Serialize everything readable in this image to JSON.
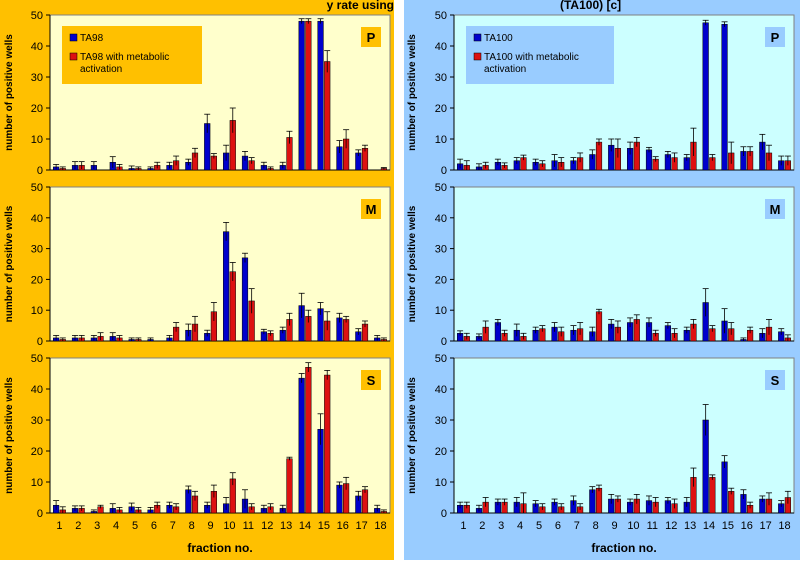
{
  "header_text": "y rate using",
  "header_text_right": "(TA100) [c]",
  "xlabel": "fraction no.",
  "ylabel": "number of positive wells",
  "colors": {
    "left_bg": "#ffc000",
    "right_bg": "#99ccff",
    "left_plot": "#ffffcc",
    "right_plot": "#ccffff",
    "blue": "#0000cc",
    "red": "#dd1111",
    "badge_left": "#ffc000",
    "badge_right": "#99ccff",
    "legend_right": "#99ccff"
  },
  "legend_left": [
    "TA98",
    "TA98 with metabolic activation"
  ],
  "legend_right": [
    "TA100",
    "TA100 with metabolic activation"
  ],
  "chart_data": [
    {
      "type": "bar",
      "panel": "P",
      "strain": "TA98",
      "categories": [
        "1",
        "2",
        "3",
        "4",
        "5",
        "6",
        "7",
        "8",
        "9",
        "10",
        "11",
        "12",
        "13",
        "14",
        "15",
        "16",
        "17",
        "18"
      ],
      "ylim": [
        0,
        50
      ],
      "yticks": [
        0,
        10,
        20,
        30,
        40,
        50
      ],
      "series": [
        {
          "name": "TA98",
          "values": [
            1,
            1.5,
            1.5,
            2.5,
            0.5,
            0.5,
            1.5,
            2.5,
            15,
            5.5,
            4.5,
            1.5,
            1.5,
            48,
            48,
            7.5,
            5.5,
            0
          ],
          "errors": [
            0.8,
            1.2,
            1.2,
            1.8,
            0.8,
            0.5,
            1,
            1,
            3,
            2.5,
            1.5,
            1,
            1,
            0.8,
            0.8,
            2,
            1,
            0
          ]
        },
        {
          "name": "TA98 with metabolic activation",
          "values": [
            0.5,
            1.5,
            0,
            1,
            0.5,
            1.5,
            3,
            5.5,
            4.5,
            16,
            3,
            0.5,
            10.5,
            48,
            35,
            10,
            7,
            0.5
          ],
          "errors": [
            0.5,
            1.2,
            0,
            0.8,
            0.5,
            1,
            1.5,
            1.5,
            0.8,
            4,
            1,
            0.5,
            2,
            0.8,
            3.5,
            3,
            1,
            0.3
          ]
        }
      ]
    },
    {
      "type": "bar",
      "panel": "M",
      "strain": "TA98",
      "categories": [
        "1",
        "2",
        "3",
        "4",
        "5",
        "6",
        "7",
        "8",
        "9",
        "10",
        "11",
        "12",
        "13",
        "14",
        "15",
        "16",
        "17",
        "18"
      ],
      "ylim": [
        0,
        50
      ],
      "yticks": [
        0,
        10,
        20,
        30,
        40,
        50
      ],
      "series": [
        {
          "name": "TA98",
          "values": [
            1,
            1,
            1,
            1.5,
            0.5,
            0.5,
            1,
            3.5,
            2.5,
            35.5,
            27,
            3,
            3.5,
            11.5,
            10.5,
            7.5,
            3,
            1
          ],
          "errors": [
            0.8,
            0.8,
            0.8,
            1.2,
            0.5,
            0.5,
            0.8,
            2,
            1,
            3,
            1.5,
            0.8,
            1,
            4,
            2,
            1.5,
            1,
            0.8
          ]
        },
        {
          "name": "TA98 with metabolic activation",
          "values": [
            0.5,
            1,
            1.5,
            1,
            0.5,
            0,
            4.5,
            5.5,
            9.5,
            22.5,
            13,
            2.5,
            7,
            8,
            6.5,
            7,
            5.5,
            0.5
          ],
          "errors": [
            0.5,
            0.8,
            1.2,
            0.8,
            0.5,
            0,
            1.5,
            2.5,
            3,
            3,
            4,
            0.8,
            2,
            2,
            3,
            1,
            1,
            0.5
          ]
        }
      ]
    },
    {
      "type": "bar",
      "panel": "S",
      "strain": "TA98",
      "categories": [
        "1",
        "2",
        "3",
        "4",
        "5",
        "6",
        "7",
        "8",
        "9",
        "10",
        "11",
        "12",
        "13",
        "14",
        "15",
        "16",
        "17",
        "18"
      ],
      "ylim": [
        0,
        50
      ],
      "yticks": [
        0,
        10,
        20,
        30,
        40,
        50
      ],
      "series": [
        {
          "name": "TA98",
          "values": [
            2.5,
            1.5,
            0.5,
            1.5,
            2,
            1,
            2.5,
            7.5,
            2.5,
            3,
            4.5,
            1.5,
            1.5,
            43.5,
            27,
            9,
            5.5,
            1.5
          ],
          "errors": [
            1.5,
            0.8,
            0.5,
            1.5,
            1.2,
            0.8,
            1,
            1.2,
            1,
            2,
            3,
            1,
            1,
            1.5,
            5,
            1,
            1.5,
            1
          ]
        },
        {
          "name": "TA98 with metabolic activation",
          "values": [
            1,
            1.5,
            2,
            1,
            1,
            2.5,
            2,
            5.5,
            7,
            11,
            2,
            2,
            17.5,
            47,
            44.5,
            9.5,
            7.5,
            0.5
          ],
          "errors": [
            1,
            0.8,
            0.5,
            0.8,
            0.8,
            1,
            1,
            1.5,
            2,
            2,
            1,
            1,
            0.5,
            1.5,
            1.5,
            2,
            1,
            0.5
          ]
        }
      ]
    },
    {
      "type": "bar",
      "panel": "P",
      "strain": "TA100",
      "categories": [
        "1",
        "2",
        "3",
        "4",
        "5",
        "6",
        "7",
        "8",
        "9",
        "10",
        "11",
        "12",
        "13",
        "14",
        "15",
        "16",
        "17",
        "18"
      ],
      "ylim": [
        0,
        50
      ],
      "yticks": [
        0,
        10,
        20,
        30,
        40,
        50
      ],
      "series": [
        {
          "name": "TA100",
          "values": [
            2,
            1,
            2.5,
            3,
            2.5,
            3,
            3,
            5,
            8,
            7,
            6.5,
            5,
            4,
            47.5,
            47,
            6,
            9,
            3
          ],
          "errors": [
            1.5,
            1,
            1,
            1,
            1,
            2,
            1,
            1.5,
            2,
            2,
            0.8,
            1,
            1,
            0.8,
            0.8,
            1.5,
            2.5,
            1.5
          ]
        },
        {
          "name": "TA100 with metabolic activation",
          "values": [
            1.5,
            1.5,
            1.5,
            4,
            2,
            2.5,
            4,
            9,
            7,
            9,
            3.5,
            4,
            9,
            4,
            5.5,
            6,
            5.5,
            3
          ],
          "errors": [
            1.5,
            1,
            0.8,
            0.8,
            1,
            1.5,
            1.5,
            1,
            3,
            1.5,
            0.8,
            1.5,
            4.5,
            1,
            3.5,
            1.5,
            2.5,
            1.5
          ]
        }
      ]
    },
    {
      "type": "bar",
      "panel": "M",
      "strain": "TA100",
      "categories": [
        "1",
        "2",
        "3",
        "4",
        "5",
        "6",
        "7",
        "8",
        "9",
        "10",
        "11",
        "12",
        "13",
        "14",
        "15",
        "16",
        "17",
        "18"
      ],
      "ylim": [
        0,
        50
      ],
      "yticks": [
        0,
        10,
        20,
        30,
        40,
        50
      ],
      "series": [
        {
          "name": "TA100",
          "values": [
            2.5,
            1.5,
            6,
            3.5,
            3.5,
            4.5,
            3.5,
            3,
            5.5,
            6,
            6,
            5,
            3.5,
            12.5,
            6.5,
            0.5,
            2.5,
            3
          ],
          "errors": [
            0.8,
            0.8,
            1,
            2,
            1,
            1.5,
            1.5,
            1.5,
            1.5,
            1.5,
            1.5,
            1,
            1,
            4.5,
            4,
            0.5,
            1.5,
            1
          ]
        },
        {
          "name": "TA100 with metabolic activation",
          "values": [
            1.5,
            4.5,
            2.5,
            1.5,
            4,
            3,
            4,
            9.5,
            4.5,
            7,
            2.5,
            2.5,
            5.5,
            4,
            4,
            3.5,
            4.5,
            1
          ],
          "errors": [
            1,
            2,
            1,
            1,
            1,
            1.5,
            2,
            0.8,
            2,
            1.5,
            1,
            1.5,
            1.5,
            1,
            2,
            1,
            2.5,
            1
          ]
        }
      ]
    },
    {
      "type": "bar",
      "panel": "S",
      "strain": "TA100",
      "categories": [
        "1",
        "2",
        "3",
        "4",
        "5",
        "6",
        "7",
        "8",
        "9",
        "10",
        "11",
        "12",
        "13",
        "14",
        "15",
        "16",
        "17",
        "18"
      ],
      "ylim": [
        0,
        50
      ],
      "yticks": [
        0,
        10,
        20,
        30,
        40,
        50
      ],
      "series": [
        {
          "name": "TA100",
          "values": [
            2.5,
            1.5,
            3.5,
            3.5,
            3,
            3.5,
            4,
            7.5,
            4.5,
            3.5,
            4,
            4,
            3.5,
            30,
            16.5,
            6,
            4.5,
            3
          ],
          "errors": [
            1,
            1,
            1,
            1.5,
            1,
            1,
            1.5,
            1,
            1.5,
            1,
            1.5,
            1,
            1.5,
            5,
            2,
            1.5,
            1,
            1
          ]
        },
        {
          "name": "TA100 with metabolic activation",
          "values": [
            2.5,
            3.5,
            3.5,
            3,
            2,
            2,
            2,
            8,
            4.5,
            4.5,
            3.5,
            3,
            11.5,
            11.5,
            7,
            2.5,
            4.5,
            5
          ],
          "errors": [
            1,
            1.5,
            1,
            3.5,
            1,
            1,
            1,
            1,
            1,
            1.5,
            1.5,
            1.5,
            3,
            0.8,
            1,
            1,
            2,
            2
          ]
        }
      ]
    }
  ]
}
